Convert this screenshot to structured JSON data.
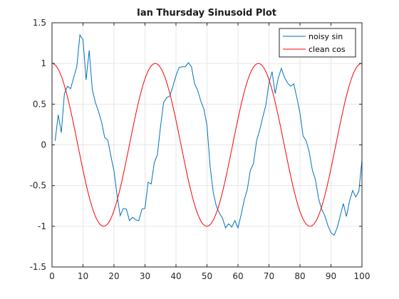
{
  "chart_data": {
    "type": "line",
    "title": "Ian Thursday Sinusoid Plot",
    "xlabel": "",
    "ylabel": "",
    "xlim": [
      0,
      100
    ],
    "ylim": [
      -1.5,
      1.5
    ],
    "xticks": [
      "0",
      "10",
      "20",
      "30",
      "40",
      "50",
      "60",
      "70",
      "80",
      "90",
      "100"
    ],
    "yticks": [
      "1.5",
      "1",
      "0.5",
      "0",
      "-0.5",
      "-1",
      "-1.5"
    ],
    "grid": true,
    "legend_position": "top-right",
    "series": [
      {
        "name": "noisy sin",
        "color": "#0072bd",
        "x": [
          1,
          2,
          3,
          4,
          5,
          6,
          7,
          8,
          9,
          10,
          11,
          12,
          13,
          14,
          15,
          16,
          17,
          18,
          19,
          20,
          21,
          22,
          23,
          24,
          25,
          26,
          27,
          28,
          29,
          30,
          31,
          32,
          33,
          34,
          35,
          36,
          37,
          38,
          39,
          40,
          41,
          42,
          43,
          44,
          45,
          46,
          47,
          48,
          49,
          50,
          51,
          52,
          53,
          54,
          55,
          56,
          57,
          58,
          59,
          60,
          61,
          62,
          63,
          64,
          65,
          66,
          67,
          68,
          69,
          70,
          71,
          72,
          73,
          74,
          75,
          76,
          77,
          78,
          79,
          80,
          81,
          82,
          83,
          84,
          85,
          86,
          87,
          88,
          89,
          90,
          91,
          92,
          93,
          94,
          95,
          96,
          97,
          98,
          99,
          100
        ],
        "y": [
          0.05,
          0.37,
          0.15,
          0.63,
          0.72,
          0.69,
          0.83,
          0.96,
          1.35,
          1.29,
          0.8,
          1.16,
          0.68,
          0.52,
          0.41,
          0.28,
          0.09,
          0.06,
          -0.14,
          -0.32,
          -0.62,
          -0.87,
          -0.78,
          -0.79,
          -0.93,
          -0.89,
          -0.92,
          -0.93,
          -0.79,
          -0.78,
          -0.46,
          -0.48,
          -0.22,
          -0.12,
          0.22,
          0.52,
          0.58,
          0.6,
          0.72,
          0.85,
          0.95,
          0.96,
          0.96,
          1.01,
          0.96,
          0.75,
          0.67,
          0.54,
          0.44,
          0.24,
          -0.26,
          -0.58,
          -0.75,
          -0.84,
          -0.9,
          -1.02,
          -0.97,
          -1.01,
          -0.93,
          -1.02,
          -0.86,
          -0.68,
          -0.55,
          -0.31,
          -0.23,
          0.05,
          0.18,
          0.34,
          0.49,
          0.76,
          0.9,
          0.63,
          0.82,
          0.94,
          0.83,
          0.76,
          0.72,
          0.75,
          0.58,
          0.39,
          0.11,
          0.05,
          -0.09,
          -0.31,
          -0.43,
          -0.66,
          -0.79,
          -0.87,
          -0.99,
          -1.08,
          -1.11,
          -1.02,
          -0.87,
          -0.72,
          -0.88,
          -0.69,
          -0.56,
          -0.64,
          -0.57,
          -0.19
        ]
      },
      {
        "name": "clean cos",
        "color": "#ff0000",
        "function": "cos(2*pi*x/33.3)",
        "x_start": 0,
        "x_end": 100
      }
    ]
  }
}
